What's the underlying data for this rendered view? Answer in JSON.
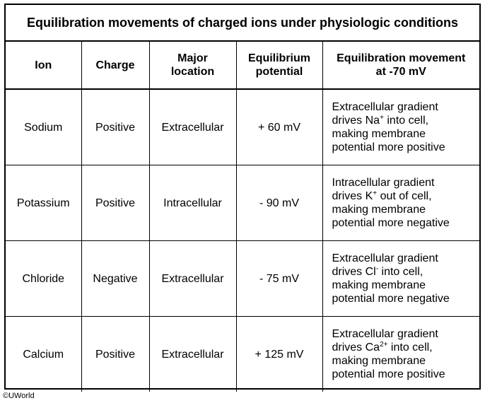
{
  "title": "Equilibration movements of charged ions under physiologic conditions",
  "headers": {
    "ion": "Ion",
    "charge": "Charge",
    "location_line1": "Major",
    "location_line2": "location",
    "potential_line1": "Equilibrium",
    "potential_line2": "potential",
    "movement_line1": "Equilibration movement",
    "movement_line2": "at -70 mV"
  },
  "rows": [
    {
      "ion": "Sodium",
      "charge": "Positive",
      "location": "Extracellular",
      "potential": "+ 60 mV",
      "movement": {
        "line1": "Extracellular gradient",
        "line2_pre": "drives Na",
        "line2_sup": "+",
        "line2_post": " into cell,",
        "line3": "making membrane",
        "line4": "potential more positive"
      }
    },
    {
      "ion": "Potassium",
      "charge": "Positive",
      "location": "Intracellular",
      "potential": "- 90 mV",
      "movement": {
        "line1": "Intracellular gradient",
        "line2_pre": "drives K",
        "line2_sup": "+",
        "line2_post": " out of cell,",
        "line3": "making membrane",
        "line4": "potential more negative"
      }
    },
    {
      "ion": "Chloride",
      "charge": "Negative",
      "location": "Extracellular",
      "potential": "- 75 mV",
      "movement": {
        "line1": "Extracellular gradient",
        "line2_pre": "drives Cl",
        "line2_sup": "-",
        "line2_post": " into cell,",
        "line3": "making membrane",
        "line4": "potential more negative"
      }
    },
    {
      "ion": "Calcium",
      "charge": "Positive",
      "location": "Extracellular",
      "potential": "+ 125 mV",
      "movement": {
        "line1": "Extracellular gradient",
        "line2_pre": "drives Ca",
        "line2_sup": "2+",
        "line2_post": " into cell,",
        "line3": "making membrane",
        "line4": "potential more positive"
      }
    }
  ],
  "copyright": "©UWorld"
}
